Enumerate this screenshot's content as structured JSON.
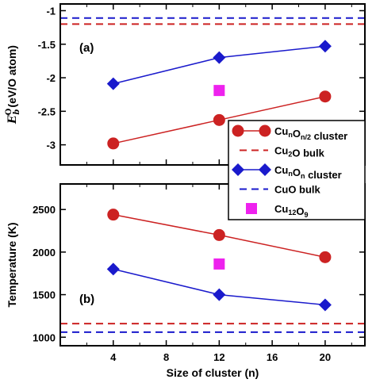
{
  "chart_data": [
    {
      "type": "line",
      "panel_tag": "(a)",
      "ylabel": {
        "main": "E",
        "sup": "O",
        "sub": "b",
        "rest": "(eV/O atom)"
      },
      "ylim": [
        -3.3,
        -0.9
      ],
      "yticks": [
        "-1",
        "-1.5",
        "-2",
        "-2.5",
        "-3"
      ],
      "ytick_values": [
        -1,
        -1.5,
        -2,
        -2.5,
        -3
      ],
      "xlim": [
        0,
        23
      ],
      "series": [
        {
          "name": "CunOn/2 cluster",
          "color": "#cc2222",
          "marker": "circle",
          "x": [
            4,
            12,
            20
          ],
          "y": [
            -2.98,
            -2.63,
            -2.28
          ]
        },
        {
          "name": "CunOn cluster",
          "color": "#1a1acc",
          "marker": "diamond",
          "x": [
            4,
            12,
            20
          ],
          "y": [
            -2.09,
            -1.7,
            -1.53
          ]
        },
        {
          "name": "Cu12O9",
          "color": "#ee22ee",
          "marker": "square",
          "x": [
            12
          ],
          "y": [
            -2.19
          ]
        }
      ],
      "hlines": [
        {
          "name": "Cu2O bulk",
          "color": "#cc2222",
          "y": -1.2
        },
        {
          "name": "CuO bulk",
          "color": "#1a1acc",
          "y": -1.11
        }
      ]
    },
    {
      "type": "line",
      "panel_tag": "(b)",
      "ylabel": "Temperature (K)",
      "xlabel": "Size of cluster (n)",
      "xlim": [
        0,
        23
      ],
      "xticks": [
        "4",
        "8",
        "12",
        "16",
        "20"
      ],
      "xtick_values": [
        4,
        8,
        12,
        16,
        20
      ],
      "ylim": [
        900,
        2800
      ],
      "yticks": [
        "2500",
        "2000",
        "1500",
        "1000"
      ],
      "ytick_values": [
        2500,
        2000,
        1500,
        1000
      ],
      "series": [
        {
          "name": "CunOn/2 cluster",
          "color": "#cc2222",
          "marker": "circle",
          "x": [
            4,
            12,
            20
          ],
          "y": [
            2440,
            2200,
            1940
          ]
        },
        {
          "name": "CunOn cluster",
          "color": "#1a1acc",
          "marker": "diamond",
          "x": [
            4,
            12,
            20
          ],
          "y": [
            1800,
            1500,
            1380
          ]
        },
        {
          "name": "Cu12O9",
          "color": "#ee22ee",
          "marker": "square",
          "x": [
            12
          ],
          "y": [
            1860
          ]
        }
      ],
      "hlines": [
        {
          "name": "Cu2O bulk",
          "color": "#cc2222",
          "y": 1160
        },
        {
          "name": "CuO bulk",
          "color": "#1a1acc",
          "y": 1060
        }
      ]
    }
  ],
  "legend": {
    "placement": "right, between panels",
    "entries": [
      {
        "key": "cu2o_cluster",
        "parts": [
          [
            "Cu",
            ""
          ],
          [
            "n",
            "sub"
          ],
          [
            "O",
            ""
          ],
          [
            "n/2",
            "sub"
          ],
          [
            " cluster",
            ""
          ]
        ],
        "style": "line-circle",
        "color": "#cc2222"
      },
      {
        "key": "cu2o_bulk",
        "parts": [
          [
            "Cu",
            ""
          ],
          [
            "2",
            "sub"
          ],
          [
            "O bulk",
            ""
          ]
        ],
        "style": "dashed",
        "color": "#cc2222"
      },
      {
        "key": "cuo_cluster",
        "parts": [
          [
            "Cu",
            ""
          ],
          [
            "n",
            "sub"
          ],
          [
            "O",
            ""
          ],
          [
            "n",
            "sub"
          ],
          [
            "  cluster",
            ""
          ]
        ],
        "style": "line-diamond",
        "color": "#1a1acc"
      },
      {
        "key": "cuo_bulk",
        "parts": [
          [
            "CuO bulk",
            ""
          ]
        ],
        "style": "dashed",
        "color": "#1a1acc"
      },
      {
        "key": "cu12o9",
        "parts": [
          [
            "Cu",
            ""
          ],
          [
            "12",
            "sub"
          ],
          [
            "O",
            ""
          ],
          [
            "9",
            "sub"
          ]
        ],
        "style": "square",
        "color": "#ee22ee"
      }
    ]
  }
}
